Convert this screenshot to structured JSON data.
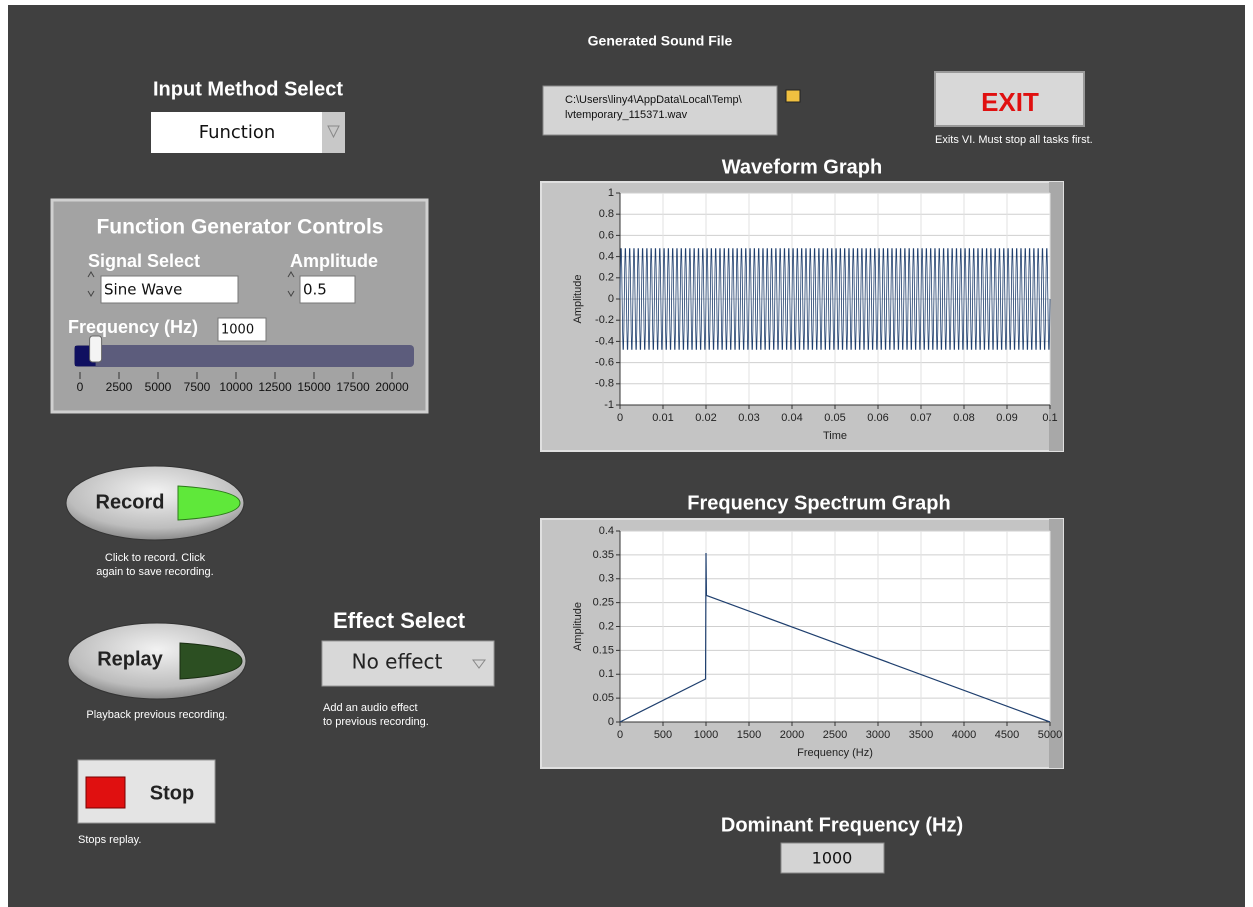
{
  "input_method": {
    "label": "Input Method Select",
    "value": "Function"
  },
  "function_generator": {
    "title": "Function Generator Controls",
    "signal_select": {
      "label": "Signal Select",
      "value": "Sine Wave"
    },
    "amplitude": {
      "label": "Amplitude",
      "value": 0.5
    },
    "frequency": {
      "label": "Frequency (Hz)",
      "value": 1000,
      "range": [
        0,
        20000
      ],
      "ticks": [
        0,
        2500,
        5000,
        7500,
        10000,
        12500,
        15000,
        17500,
        20000
      ]
    }
  },
  "record": {
    "label": "Record",
    "caption": [
      "Click to record.  Click",
      "again to save recording."
    ]
  },
  "replay": {
    "label": "Replay",
    "caption": [
      "Playback previous recording."
    ]
  },
  "stop": {
    "label": "Stop",
    "caption": [
      "Stops replay."
    ]
  },
  "effect_select": {
    "label": "Effect Select",
    "value": "No effect",
    "caption": [
      "Add an audio effect",
      "to previous recording."
    ]
  },
  "sound_file": {
    "label": "Generated Sound File",
    "path": [
      "C:\\Users\\liny4\\AppData\\Local\\Temp\\",
      "lvtemporary_115371.wav"
    ]
  },
  "exit": {
    "label": "EXIT",
    "caption": [
      "Exits VI.  Must stop all tasks first."
    ]
  },
  "chart_data": [
    {
      "type": "waveform",
      "title": "Waveform Graph",
      "x_label": "Time",
      "y_label": "Amplitude",
      "xlim": [
        0,
        0.1
      ],
      "xticks": [
        0,
        0.01,
        0.02,
        0.03,
        0.04,
        0.05,
        0.06,
        0.07,
        0.08,
        0.09,
        0.1
      ],
      "ylim": [
        -1,
        1
      ],
      "yticks": [
        -1,
        -0.8,
        -0.6,
        -0.4,
        -0.2,
        0,
        0.2,
        0.4,
        0.6,
        0.8,
        1
      ],
      "color": "#1f3f6e",
      "grid": true
    },
    {
      "type": "line",
      "title": "Frequency Spectrum Graph",
      "x_label": "Frequency (Hz)",
      "y_label": "Amplitude",
      "x": [
        0,
        995,
        1000,
        1005,
        5000
      ],
      "values": [
        0,
        0.09,
        0.354,
        0.265,
        0
      ],
      "xlim": [
        0,
        5000
      ],
      "xticks": [
        0,
        500,
        1000,
        1500,
        2000,
        2500,
        3000,
        3500,
        4000,
        4500,
        5000
      ],
      "ylim": [
        0,
        0.4
      ],
      "yticks": [
        0,
        0.05,
        0.1,
        0.15,
        0.2,
        0.25,
        0.3,
        0.35,
        0.4
      ],
      "color": "#1f3f6e",
      "grid": true
    }
  ],
  "dominant_frequency": {
    "label": "Dominant Frequency (Hz)",
    "value": 1000
  }
}
